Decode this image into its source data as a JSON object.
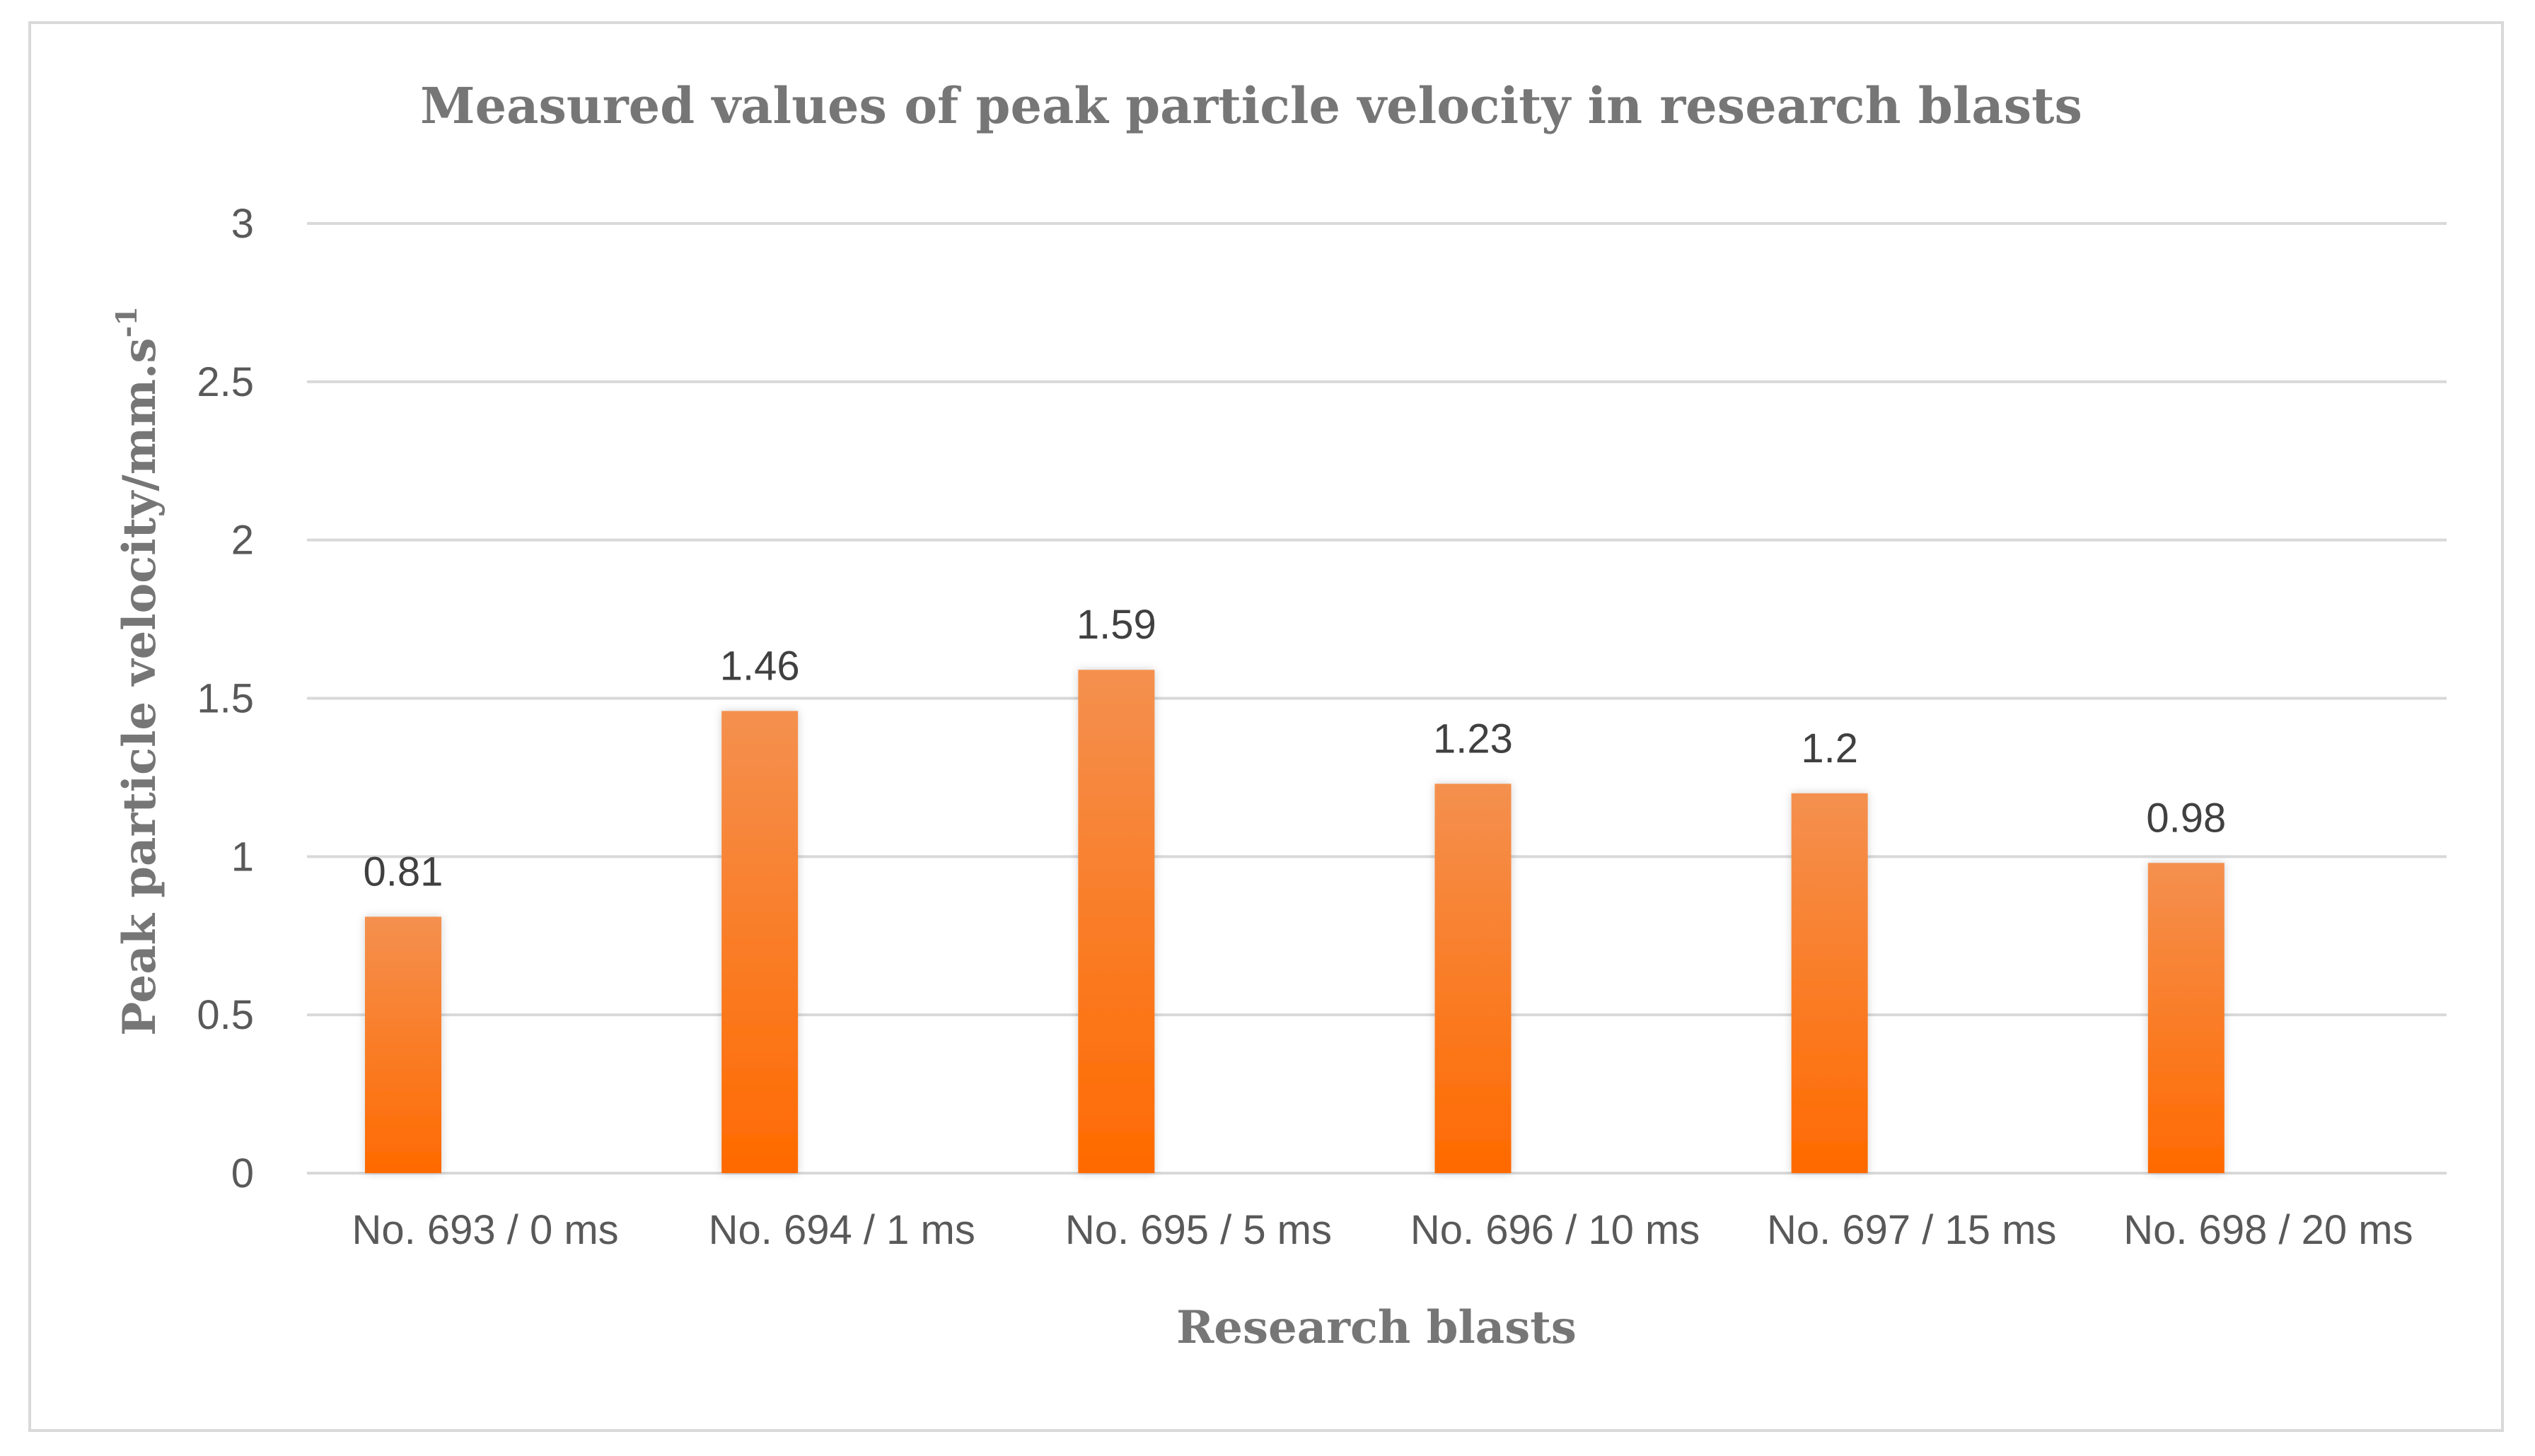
{
  "chart_data": {
    "type": "bar",
    "title": "Measured values of peak particle velocity in research blasts",
    "xlabel": "Research blasts",
    "ylabel": "Peak particle velocity/mm.s",
    "ylabel_superscript": "-1",
    "categories": [
      "No. 693 / 0 ms",
      "No. 694 / 1 ms",
      "No. 695 / 5 ms",
      "No. 696 / 10 ms",
      "No. 697 / 15 ms",
      "No. 698 / 20 ms"
    ],
    "values": [
      0.81,
      1.46,
      1.59,
      1.23,
      1.2,
      0.98
    ],
    "data_labels": [
      "0.81",
      "1.46",
      "1.59",
      "1.23",
      "1.2",
      "0.98"
    ],
    "yticks": [
      0,
      0.5,
      1,
      1.5,
      2,
      2.5,
      3
    ],
    "ytick_labels": [
      "0",
      "0.5",
      "1",
      "1.5",
      "2",
      "2.5",
      "3"
    ],
    "ylim": [
      0,
      3
    ],
    "grid": true,
    "legend": "none",
    "bar_color_top": "#f4904f",
    "bar_color_bottom": "#ff6a00",
    "grid_color": "#d9d9d9"
  }
}
